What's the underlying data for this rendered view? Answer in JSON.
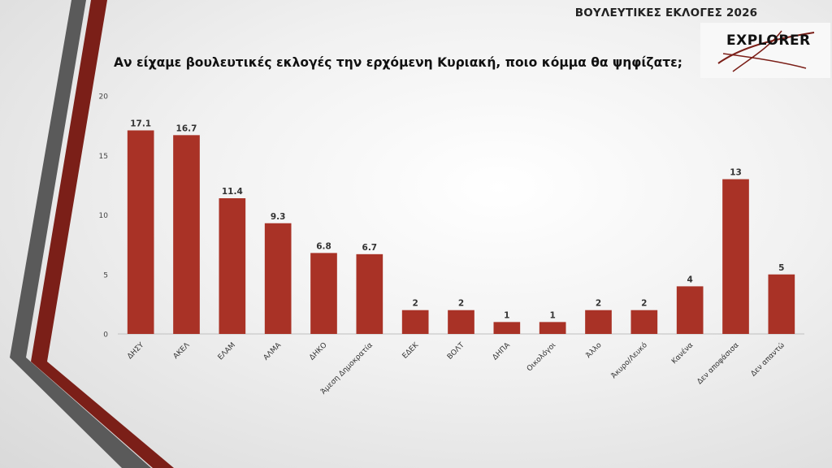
{
  "header": {
    "title": "ΒΟΥΛΕΥΤΙΚΕΣ ΕΚΛΟΓΕΣ 2026"
  },
  "logo": {
    "text": "EXPLORER"
  },
  "chart_data": {
    "type": "bar",
    "title": "Αν είχαμε βουλευτικές εκλογές την ερχόμενη Κυριακή, ποιο κόμμα θα ψηφίζατε;",
    "categories": [
      "ΔΗΣΥ",
      "ΑΚΕΛ",
      "ΕΛΑΜ",
      "ΑΛΜΑ",
      "ΔΗΚΟ",
      "Άμεση Δημοκρατία",
      "ΕΔΕΚ",
      "ΒΟΛΤ",
      "ΔΗΠΑ",
      "Οικολόγοι",
      "Άλλο",
      "Άκυρο/Λευκό",
      "Κανένα",
      "Δεν αποφάσισα",
      "Δεν απαντώ"
    ],
    "values": [
      17.1,
      16.7,
      11.4,
      9.3,
      6.8,
      6.7,
      2,
      2,
      1,
      1,
      2,
      2,
      4,
      13,
      5
    ],
    "data_labels": [
      "17.1",
      "16.7",
      "11.4",
      "9.3",
      "6.8",
      "6.7",
      "2",
      "2",
      "1",
      "1",
      "2",
      "2",
      "4",
      "13",
      "5"
    ],
    "y_ticks": [
      0,
      5,
      10,
      15,
      20
    ],
    "ylim": [
      0,
      20
    ],
    "xlabel": "",
    "ylabel": "",
    "grid": false,
    "legend": "none",
    "colors": {
      "bar": "#A93226",
      "axis": "#bfbfbf",
      "label": "#333333",
      "tick": "#444444"
    }
  }
}
